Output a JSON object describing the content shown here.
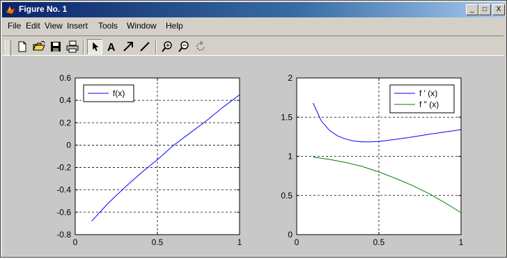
{
  "window": {
    "title": "Figure No. 1"
  },
  "controls": {
    "minimize": "_",
    "maximize": "□",
    "close": "X"
  },
  "menu": [
    "File",
    "Edit",
    "View",
    "Insert",
    "Tools",
    "Window",
    "Help"
  ],
  "colors": {
    "blue": "#0000ff",
    "green": "#008000",
    "titlebar": "#0a246a",
    "plot_bg": "#ffffff",
    "figure_bg": "#c8c8c8"
  },
  "toolbar": [
    "new-file-icon",
    "open-folder-icon",
    "save-disk-icon",
    "print-icon",
    "pointer-arrow-icon",
    "text-A-icon",
    "arrow-icon",
    "line-icon",
    "zoom-in-icon",
    "zoom-out-icon",
    "rotate-icon"
  ],
  "chart_data": [
    {
      "type": "line",
      "legend": [
        "f(x)"
      ],
      "legend_position": "top-left",
      "grid": true,
      "xlim": [
        0,
        1
      ],
      "ylim": [
        -0.8,
        0.6
      ],
      "xticks": [
        "0",
        "0.5",
        "1"
      ],
      "yticks": [
        "0.6",
        "0.4",
        "0.2",
        "0",
        "-0.2",
        "-0.4",
        "-0.6",
        "-0.8"
      ],
      "series": [
        {
          "name": "f(x)",
          "color": "#0000ff",
          "x": [
            0.1,
            0.2,
            0.3,
            0.4,
            0.5,
            0.6,
            0.7,
            0.8,
            0.9,
            1.0
          ],
          "y": [
            -0.68,
            -0.52,
            -0.38,
            -0.25,
            -0.13,
            0.0,
            0.11,
            0.22,
            0.34,
            0.45
          ]
        }
      ]
    },
    {
      "type": "line",
      "legend": [
        "f ' (x)",
        "f \" (x)"
      ],
      "legend_position": "top-right",
      "grid": true,
      "xlim": [
        0,
        1
      ],
      "ylim": [
        0,
        2
      ],
      "xticks": [
        "0",
        "0.5",
        "1"
      ],
      "yticks": [
        "2",
        "1.5",
        "1",
        "0.5",
        "0"
      ],
      "series": [
        {
          "name": "f ' (x)",
          "color": "#0000ff",
          "x": [
            0.1,
            0.15,
            0.2,
            0.25,
            0.3,
            0.35,
            0.4,
            0.45,
            0.5,
            0.6,
            0.7,
            0.8,
            0.9,
            1.0
          ],
          "y": [
            1.68,
            1.45,
            1.33,
            1.26,
            1.22,
            1.195,
            1.185,
            1.185,
            1.19,
            1.215,
            1.245,
            1.28,
            1.31,
            1.34
          ]
        },
        {
          "name": "f \" (x)",
          "color": "#008000",
          "x": [
            0.1,
            0.2,
            0.3,
            0.4,
            0.5,
            0.6,
            0.7,
            0.8,
            0.9,
            1.0
          ],
          "y": [
            0.99,
            0.96,
            0.92,
            0.87,
            0.8,
            0.72,
            0.63,
            0.53,
            0.41,
            0.28
          ]
        }
      ]
    }
  ]
}
